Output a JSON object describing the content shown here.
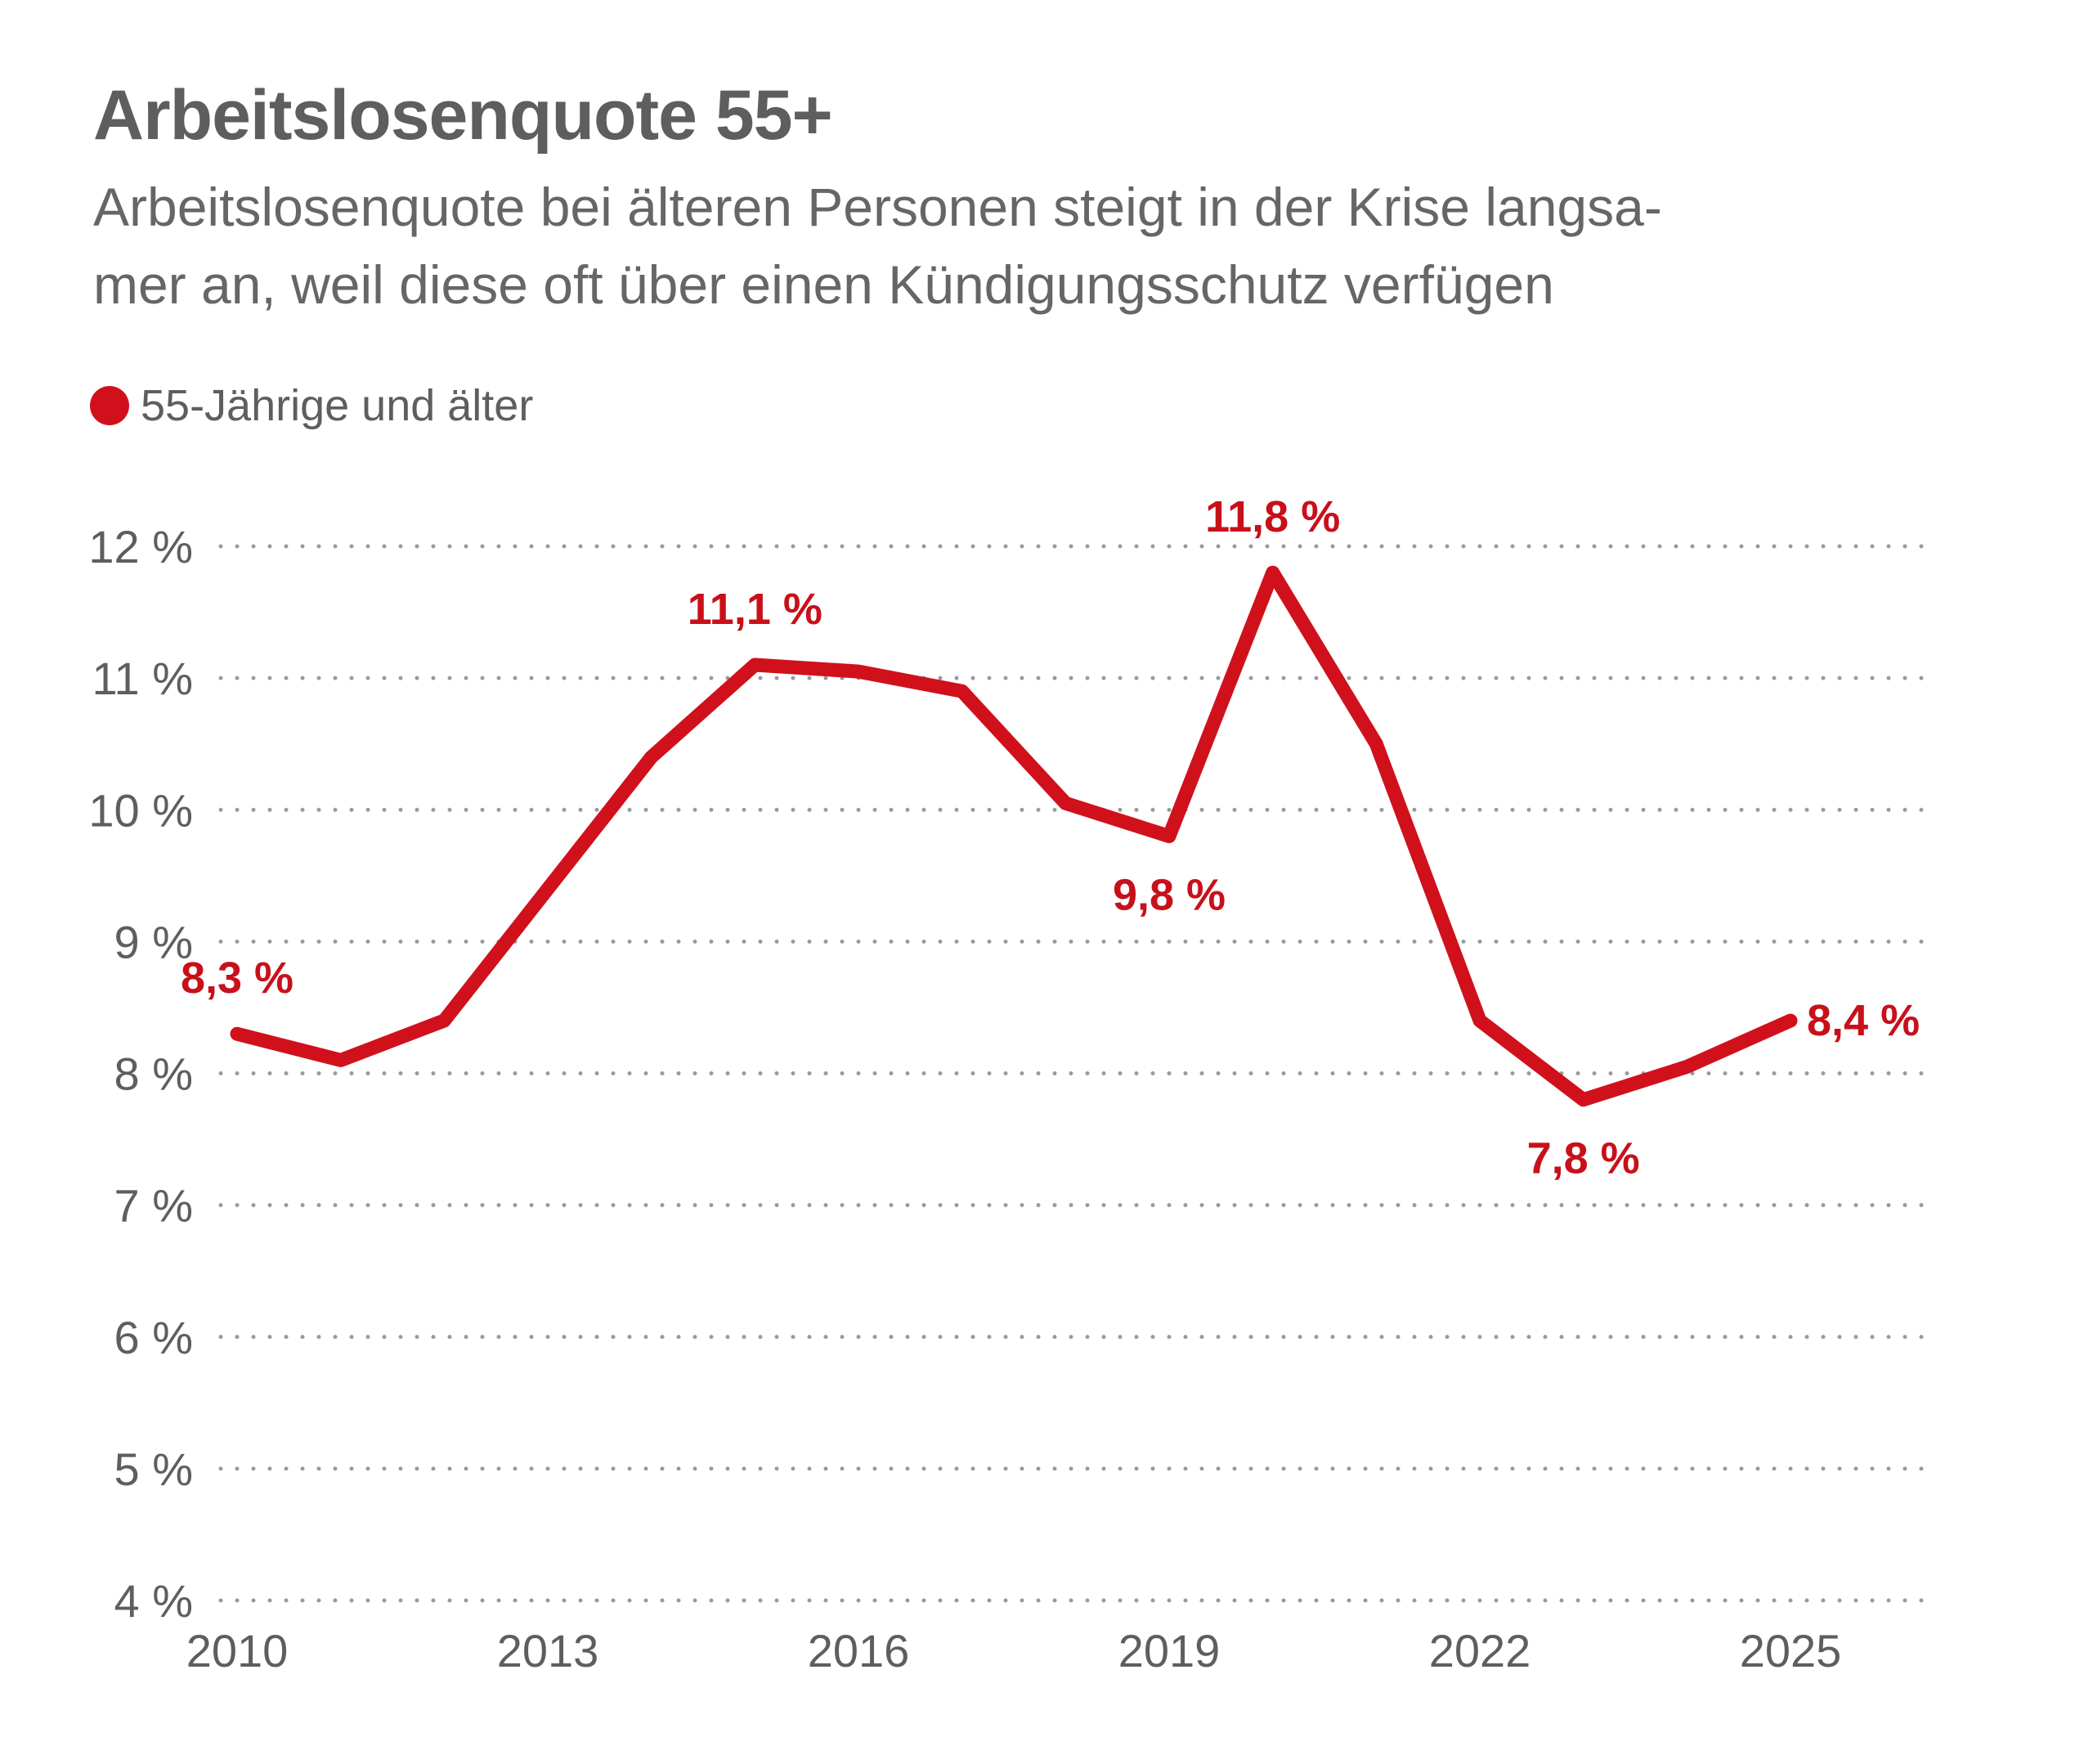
{
  "header": {
    "title": "Arbeitslosenquote 55+",
    "subtitle_line1": "Arbeitslosenquote bei älteren Personen steigt in der Krise langsa-",
    "subtitle_line2": "mer an, weil diese oft über einen Kündigungsschutz verfügen"
  },
  "legend": {
    "label": "55-Jährige und älter",
    "color": "#d0111b"
  },
  "chart_data": {
    "type": "line",
    "title": "Arbeitslosenquote 55+",
    "xlabel": "",
    "ylabel": "",
    "ylim": [
      4,
      12
    ],
    "xlim": [
      2010,
      2026.3
    ],
    "grid": true,
    "y_ticks": [
      {
        "value": 12,
        "label": "12 %"
      },
      {
        "value": 11,
        "label": "11 %"
      },
      {
        "value": 10,
        "label": "10 %"
      },
      {
        "value": 9,
        "label": "9 %"
      },
      {
        "value": 8,
        "label": "8 %"
      },
      {
        "value": 7,
        "label": "7 %"
      },
      {
        "value": 6,
        "label": "6 %"
      },
      {
        "value": 5,
        "label": "5 %"
      },
      {
        "value": 4,
        "label": "4 %"
      }
    ],
    "x_ticks": [
      {
        "value": 2010,
        "label": "2010"
      },
      {
        "value": 2013,
        "label": "2013"
      },
      {
        "value": 2016,
        "label": "2016"
      },
      {
        "value": 2019,
        "label": "2019"
      },
      {
        "value": 2022,
        "label": "2022"
      },
      {
        "value": 2025,
        "label": "2025"
      }
    ],
    "series": [
      {
        "name": "55-Jährige und älter",
        "color": "#d0111b",
        "x": [
          2010,
          2011,
          2012,
          2013,
          2014,
          2015,
          2016,
          2017,
          2018,
          2019,
          2020,
          2021,
          2022,
          2023,
          2024,
          2025
        ],
        "values": [
          8.3,
          8.1,
          8.4,
          9.4,
          10.4,
          11.1,
          11.05,
          10.9,
          10.05,
          9.8,
          11.8,
          10.5,
          8.4,
          7.8,
          8.05,
          8.4
        ]
      }
    ],
    "annotations": [
      {
        "label": "8,3 %",
        "x": 2010,
        "y": 8.3,
        "position": "above"
      },
      {
        "label": "11,1 %",
        "x": 2015,
        "y": 11.1,
        "position": "above"
      },
      {
        "label": "9,8 %",
        "x": 2019,
        "y": 9.8,
        "position": "below"
      },
      {
        "label": "11,8 %",
        "x": 2020,
        "y": 11.8,
        "position": "above"
      },
      {
        "label": "7,8 %",
        "x": 2023,
        "y": 7.8,
        "position": "below"
      },
      {
        "label": "8,4 %",
        "x": 2025,
        "y": 8.4,
        "position": "right"
      }
    ]
  }
}
